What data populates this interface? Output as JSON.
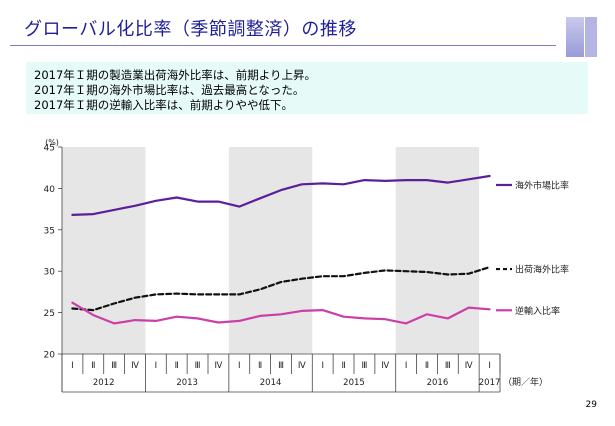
{
  "title": "グローバル化比率（季節調整済）の推移",
  "summary": [
    "2017年Ｉ期の製造業出荷海外比率は、前期より上昇。",
    "2017年Ｉ期の海外市場比率は、過去最高となった。",
    "2017年Ｉ期の逆輸入比率は、前期よりやや低下。"
  ],
  "page_number": "29",
  "colors": {
    "title": "#1f1f9a",
    "band": "#e6e6e6",
    "summary_bg": "#e6fbf8"
  },
  "chart_data": {
    "type": "line",
    "unit": "(%)",
    "ylim": [
      20,
      45
    ],
    "yticks": [
      20,
      25,
      30,
      35,
      40,
      45
    ],
    "xlabel_suffix": "（期／年）",
    "quarters": [
      "Ⅰ",
      "Ⅱ",
      "Ⅲ",
      "Ⅳ",
      "Ⅰ",
      "Ⅱ",
      "Ⅲ",
      "Ⅳ",
      "Ⅰ",
      "Ⅱ",
      "Ⅲ",
      "Ⅳ",
      "Ⅰ",
      "Ⅱ",
      "Ⅲ",
      "Ⅳ",
      "Ⅰ",
      "Ⅱ",
      "Ⅲ",
      "Ⅳ",
      "Ⅰ"
    ],
    "years": [
      "2012",
      "2013",
      "2014",
      "2015",
      "2016",
      "2017"
    ],
    "series": [
      {
        "name": "海外市場比率",
        "color": "#5b1f9a",
        "dash": "",
        "values": [
          36.8,
          36.9,
          37.4,
          37.9,
          38.5,
          38.9,
          38.4,
          38.4,
          37.8,
          38.8,
          39.8,
          40.5,
          40.6,
          40.5,
          41.0,
          40.9,
          41.0,
          41.0,
          40.7,
          41.1,
          41.5
        ]
      },
      {
        "name": "出荷海外比率",
        "color": "#111111",
        "dash": "5,3",
        "values": [
          25.5,
          25.3,
          26.1,
          26.8,
          27.2,
          27.3,
          27.2,
          27.2,
          27.2,
          27.8,
          28.7,
          29.1,
          29.4,
          29.4,
          29.8,
          30.1,
          30.0,
          29.9,
          29.6,
          29.7,
          30.5
        ]
      },
      {
        "name": "逆輸入比率",
        "color": "#cc3ea8",
        "dash": "",
        "values": [
          26.2,
          24.7,
          23.7,
          24.1,
          24.0,
          24.5,
          24.3,
          23.8,
          24.0,
          24.6,
          24.8,
          25.2,
          25.3,
          24.5,
          24.3,
          24.2,
          23.7,
          24.8,
          24.3,
          25.6,
          25.4
        ]
      }
    ]
  }
}
